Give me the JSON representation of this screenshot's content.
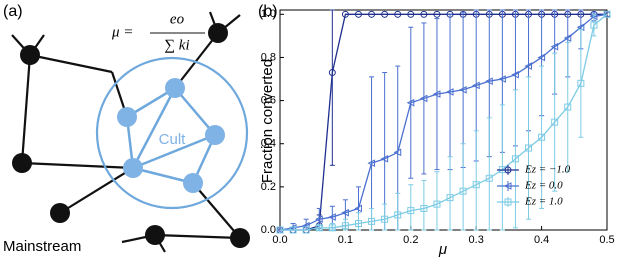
{
  "diagram": {
    "panel_label": "(a)",
    "formula": {
      "lhs": "μ =",
      "numerator": "eo",
      "denominator": "∑ ki"
    },
    "cult_label": "Cult",
    "mainstream_label": "Mainstream"
  },
  "chart_data": {
    "type": "line",
    "panel_label": "(b)",
    "xlabel": "μ",
    "ylabel": "Fraction converted",
    "x": [
      0,
      0.02,
      0.04,
      0.06,
      0.08,
      0.1,
      0.12,
      0.14,
      0.16,
      0.18,
      0.2,
      0.22,
      0.24,
      0.26,
      0.28,
      0.3,
      0.32,
      0.34,
      0.36,
      0.38,
      0.4,
      0.42,
      0.44,
      0.46,
      0.48,
      0.5
    ],
    "series": [
      {
        "name": "Ez = −1.0",
        "color": "#1f2f8f",
        "marker": "circle",
        "values": [
          0,
          0,
          0,
          0.02,
          0.73,
          1,
          1,
          1,
          1,
          1,
          1,
          1,
          1,
          1,
          1,
          1,
          1,
          1,
          1,
          1,
          1,
          1,
          1,
          1,
          1,
          1
        ],
        "errors": [
          0,
          0,
          0,
          0.05,
          0.43,
          0,
          0,
          0,
          0,
          0,
          0,
          0,
          0,
          0,
          0,
          0,
          0,
          0,
          0,
          0,
          0,
          0,
          0,
          0,
          0,
          0
        ]
      },
      {
        "name": "Ez = 0.0",
        "color": "#4a6fd0",
        "marker": "triangle",
        "values": [
          0,
          0.01,
          0.02,
          0.05,
          0.06,
          0.08,
          0.1,
          0.31,
          0.33,
          0.36,
          0.59,
          0.61,
          0.63,
          0.64,
          0.65,
          0.67,
          0.69,
          0.7,
          0.72,
          0.76,
          0.8,
          0.85,
          0.89,
          0.94,
          0.99,
          1
        ],
        "errors": [
          0,
          0.02,
          0.03,
          0.05,
          0.05,
          0.06,
          0.1,
          0.4,
          0.4,
          0.4,
          0.35,
          0.35,
          0.35,
          0.36,
          0.36,
          0.35,
          0.35,
          0.34,
          0.33,
          0.3,
          0.27,
          0.22,
          0.18,
          0.1,
          0.02,
          0
        ]
      },
      {
        "name": "Ez = 1.0",
        "color": "#7ccbe4",
        "marker": "square",
        "values": [
          0,
          0,
          0,
          0.01,
          0.01,
          0.02,
          0.03,
          0.04,
          0.05,
          0.07,
          0.09,
          0.1,
          0.12,
          0.15,
          0.18,
          0.21,
          0.24,
          0.28,
          0.33,
          0.38,
          0.43,
          0.5,
          0.57,
          0.68,
          0.95,
          1
        ],
        "errors": [
          0,
          0,
          0,
          0.01,
          0.02,
          0.03,
          0.05,
          0.06,
          0.07,
          0.1,
          0.12,
          0.13,
          0.15,
          0.19,
          0.22,
          0.25,
          0.28,
          0.3,
          0.32,
          0.33,
          0.33,
          0.32,
          0.3,
          0.25,
          0.05,
          0
        ]
      }
    ],
    "xlim": [
      0,
      0.5
    ],
    "ylim": [
      0,
      1.02
    ],
    "xticks": [
      {
        "value": 0,
        "label": "0.0"
      },
      0.1,
      0.2,
      0.3,
      0.4,
      0.5
    ],
    "yticks": [
      {
        "value": 0,
        "label": "0.0"
      },
      0.2,
      0.4,
      0.6,
      0.8,
      {
        "value": 1,
        "label": "1.0"
      }
    ],
    "legend": "lower right"
  }
}
